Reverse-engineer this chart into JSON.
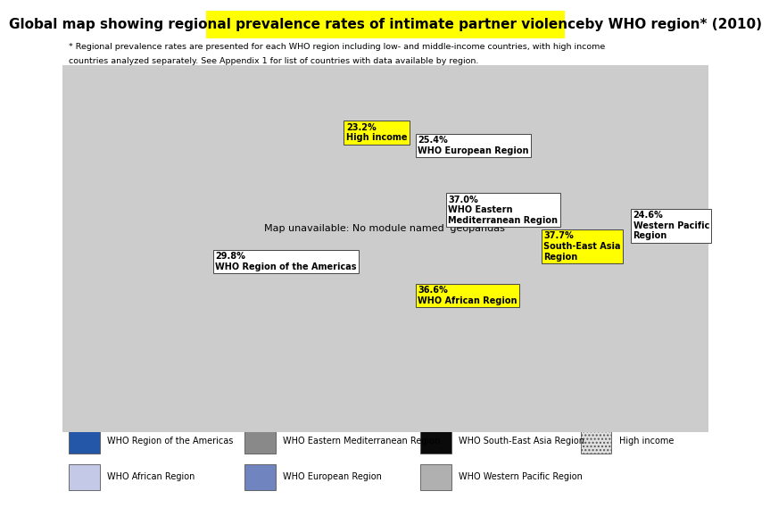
{
  "title_black1": "Global map showing ",
  "title_yellow": "regional prevalence rates of intimate partner violenceby",
  "title_black2": " WHO region* (2010)",
  "subtitle_line1": "* Regional prevalence rates are presented for each WHO region including low- and middle-income countries, with high income",
  "subtitle_line2": "countries analyzed separately. See Appendix 1 for list of countries with data available by region.",
  "regions": {
    "americas": {
      "color": "#2557a8",
      "hatch": null
    },
    "africa": {
      "color": "#c5c9e8",
      "hatch": null
    },
    "eastern_med": {
      "color": "#898989",
      "hatch": null
    },
    "europe": {
      "color": "#7085bf",
      "hatch": null
    },
    "south_east_asia": {
      "color": "#0a0a0a",
      "hatch": null
    },
    "western_pacific": {
      "color": "#b0b0b0",
      "hatch": null
    },
    "high_income": {
      "color": "#e0e0e0",
      "hatch": "...."
    },
    "unclassified": {
      "color": "#cccccc",
      "hatch": null
    }
  },
  "annotations": [
    {
      "value": "29.8%",
      "label": "WHO Region of the Americas",
      "lon": -95,
      "lat": 8,
      "yellow_bg": false
    },
    {
      "value": "23.2%",
      "label": "High income",
      "lon": -22,
      "lat": 58,
      "yellow_bg": true
    },
    {
      "value": "25.4%",
      "label": "WHO European Region",
      "lon": 18,
      "lat": 53,
      "yellow_bg": false
    },
    {
      "value": "37.0%",
      "label": "WHO Eastern\nMediterranean Region",
      "lon": 35,
      "lat": 28,
      "yellow_bg": false
    },
    {
      "value": "36.6%",
      "label": "WHO African Region",
      "lon": 18,
      "lat": -5,
      "yellow_bg": true
    },
    {
      "value": "37.7%",
      "label": "South-East Asia\nRegion",
      "lon": 88,
      "lat": 14,
      "yellow_bg": true
    },
    {
      "value": "24.6%",
      "label": "Western Pacific\nRegion",
      "lon": 138,
      "lat": 22,
      "yellow_bg": false
    }
  ],
  "legend_items": [
    {
      "color": "#2557a8",
      "hatch": null,
      "label": "WHO Region of the Americas",
      "row": 0,
      "col": 0
    },
    {
      "color": "#c5c9e8",
      "hatch": null,
      "label": "WHO African Region",
      "row": 1,
      "col": 0
    },
    {
      "color": "#898989",
      "hatch": null,
      "label": "WHO Eastern Mediterranean Region",
      "row": 0,
      "col": 1
    },
    {
      "color": "#7085bf",
      "hatch": null,
      "label": "WHO European Region",
      "row": 1,
      "col": 1
    },
    {
      "color": "#0a0a0a",
      "hatch": null,
      "label": "WHO South-East Asia Region",
      "row": 0,
      "col": 2
    },
    {
      "color": "#b0b0b0",
      "hatch": null,
      "label": "WHO Western Pacific Region",
      "row": 1,
      "col": 2
    },
    {
      "color": "#e0e0e0",
      "hatch": "....",
      "label": "High income",
      "row": 0,
      "col": 3
    }
  ],
  "bg_color": "#ffffff",
  "map_xlim": [
    -180,
    180
  ],
  "map_ylim": [
    -58,
    84
  ]
}
